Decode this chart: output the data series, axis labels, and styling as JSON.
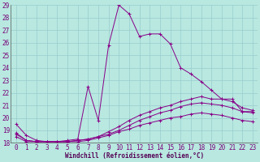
{
  "xlabel": "Windchill (Refroidissement éolien,°C)",
  "xlim_left": -0.5,
  "xlim_right": 23.5,
  "ylim": [
    18,
    29
  ],
  "yticks": [
    18,
    19,
    20,
    21,
    22,
    23,
    24,
    25,
    26,
    27,
    28,
    29
  ],
  "xticks": [
    0,
    1,
    2,
    3,
    4,
    5,
    6,
    7,
    8,
    9,
    10,
    11,
    12,
    13,
    14,
    15,
    16,
    17,
    18,
    19,
    20,
    21,
    22,
    23
  ],
  "background_color": "#b8e8e0",
  "grid_color": "#99cccc",
  "line_color": "#880088",
  "lines": [
    {
      "x": [
        0,
        1,
        2,
        3,
        4,
        5,
        6,
        7,
        8,
        9,
        10,
        11,
        12,
        13,
        14,
        15,
        16,
        17,
        18,
        19,
        20,
        21,
        22,
        23
      ],
      "y": [
        19.5,
        18.6,
        18.2,
        18.1,
        18.1,
        18.2,
        18.3,
        22.5,
        19.8,
        25.8,
        29.0,
        28.3,
        26.5,
        26.7,
        26.7,
        25.9,
        24.0,
        23.5,
        22.9,
        22.2,
        21.5,
        21.5,
        20.5,
        20.5
      ]
    },
    {
      "x": [
        0,
        1,
        2,
        3,
        4,
        5,
        6,
        7,
        8,
        9,
        10,
        11,
        12,
        13,
        14,
        15,
        16,
        17,
        18,
        19,
        20,
        21,
        22,
        23
      ],
      "y": [
        18.8,
        18.2,
        18.1,
        18.1,
        18.1,
        18.1,
        18.2,
        18.3,
        18.5,
        18.9,
        19.3,
        19.8,
        20.2,
        20.5,
        20.8,
        21.0,
        21.3,
        21.5,
        21.7,
        21.5,
        21.5,
        21.3,
        20.8,
        20.6
      ]
    },
    {
      "x": [
        0,
        1,
        2,
        3,
        4,
        5,
        6,
        7,
        8,
        9,
        10,
        11,
        12,
        13,
        14,
        15,
        16,
        17,
        18,
        19,
        20,
        21,
        22,
        23
      ],
      "y": [
        18.7,
        18.2,
        18.1,
        18.1,
        18.1,
        18.1,
        18.2,
        18.3,
        18.5,
        18.7,
        19.0,
        19.4,
        19.8,
        20.1,
        20.4,
        20.6,
        20.9,
        21.1,
        21.2,
        21.1,
        21.0,
        20.8,
        20.5,
        20.4
      ]
    },
    {
      "x": [
        0,
        1,
        2,
        3,
        4,
        5,
        6,
        7,
        8,
        9,
        10,
        11,
        12,
        13,
        14,
        15,
        16,
        17,
        18,
        19,
        20,
        21,
        22,
        23
      ],
      "y": [
        18.5,
        18.1,
        18.1,
        18.1,
        18.1,
        18.1,
        18.1,
        18.2,
        18.4,
        18.6,
        18.9,
        19.1,
        19.4,
        19.6,
        19.8,
        20.0,
        20.1,
        20.3,
        20.4,
        20.3,
        20.2,
        20.0,
        19.8,
        19.7
      ]
    }
  ],
  "tick_fontsize": 5.5,
  "xlabel_fontsize": 5.5,
  "tick_color": "#770077",
  "xlabel_color": "#550055"
}
